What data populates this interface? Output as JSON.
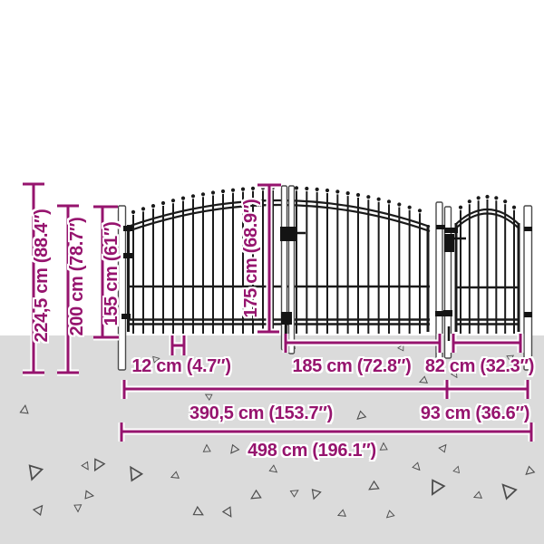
{
  "diagram": {
    "subject": "garden-gate-fence-dimension-diagram",
    "colors": {
      "accent": "#96146E",
      "ground": "#DBDBDB",
      "fence": "#1A1A1A",
      "triangle_outline": "#4D4D4D"
    },
    "dimensions": {
      "total_height": "224,5 cm (88.4″)",
      "height_above_ground": "200 cm (78.7″)",
      "side_height": "155 cm (61″)",
      "gate_height": "175 cm (68.9″)",
      "bar_spacing": "12 cm (4.7″)",
      "gate_leaf_width": "185 cm (72.8″)",
      "small_gate_width": "82 cm (32.3″)",
      "double_gate_section_width": "390,5 cm (153.7″)",
      "single_gate_section_width": "93 cm (36.6″)",
      "total_width": "498 cm (196.1″)"
    }
  }
}
